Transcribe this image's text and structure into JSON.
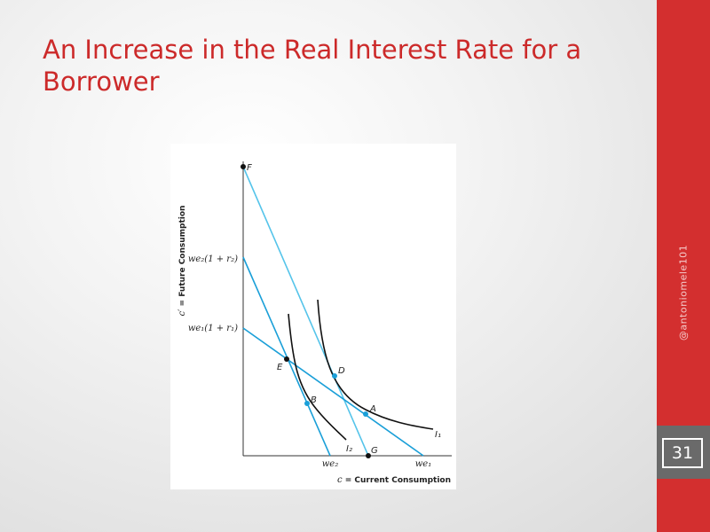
{
  "slide": {
    "title": "An Increase in the Real Interest Rate for a Borrower",
    "watermark": "@antoniomele101",
    "page_number": "31"
  },
  "colors": {
    "accent_red": "#d32f2f",
    "title_red": "#cc2a2a",
    "line_blue_dark": "#1a9fd8",
    "line_blue_light": "#55c4ea",
    "curve_black": "#111111"
  },
  "diagram": {
    "y_axis_label_italic": "c′",
    "y_axis_label_rest": " = Future Consumption",
    "x_axis_label_italic": "c",
    "x_axis_label_rest": " = Current Consumption",
    "y_tick_upper": "we₂(1 + r₂)",
    "y_tick_lower": "we₁(1 + r₁)",
    "x_tick_inner": "we₂",
    "x_tick_outer": "we₁",
    "points": {
      "F": "F",
      "G": "G",
      "E": "E",
      "D": "D",
      "B": "B",
      "A": "A"
    },
    "curves": {
      "I1": "I₁",
      "I2": "I₂"
    }
  }
}
